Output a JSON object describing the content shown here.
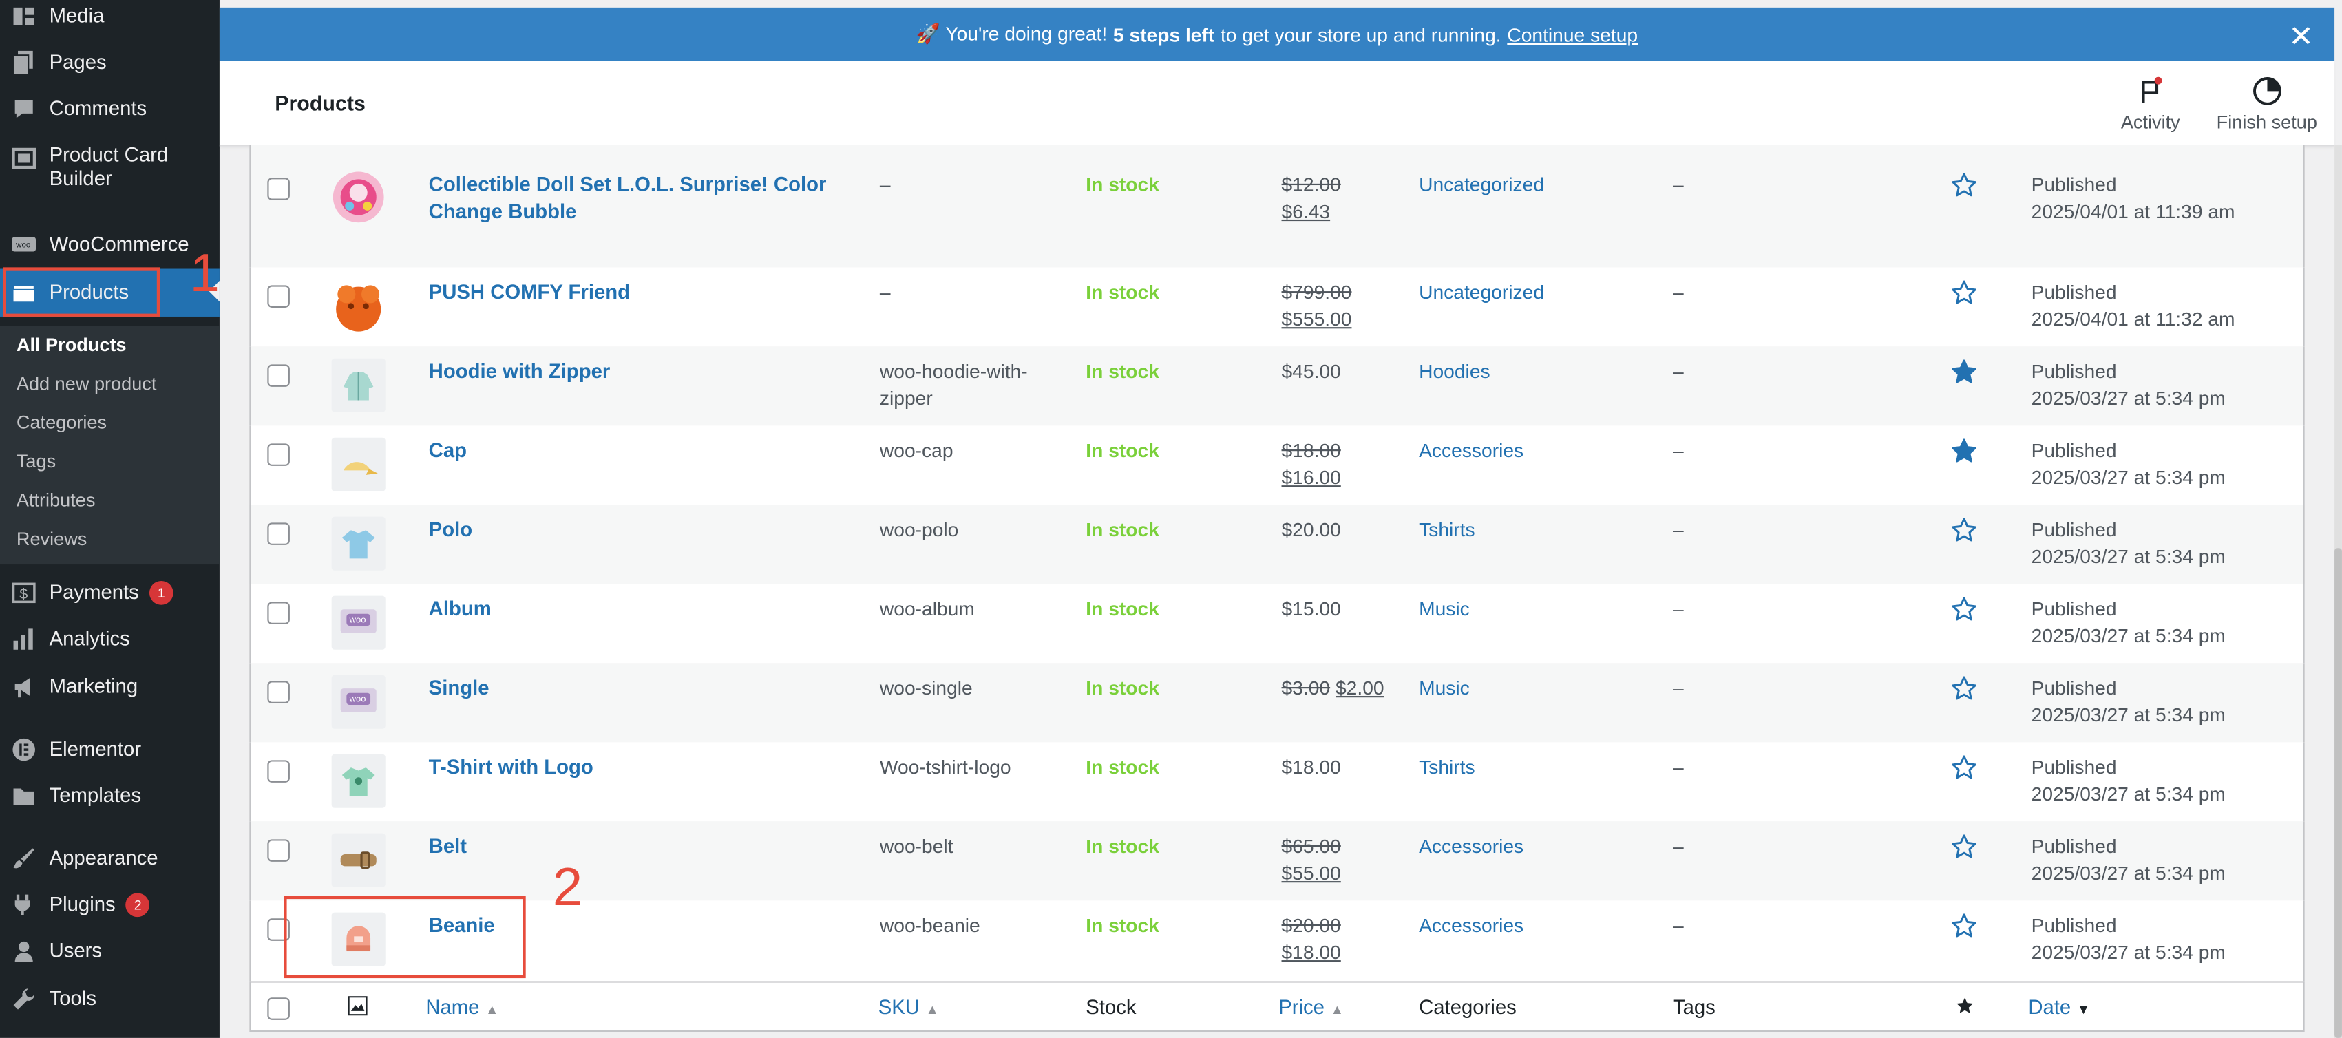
{
  "sidebar": {
    "top_items": [
      {
        "label": "Media",
        "icon": "media-icon"
      },
      {
        "label": "Pages",
        "icon": "pages-icon"
      },
      {
        "label": "Comments",
        "icon": "comments-icon"
      },
      {
        "label": "Product Card Builder",
        "icon": "card-builder-icon"
      },
      {
        "label": "WooCommerce",
        "icon": "woocommerce-icon"
      },
      {
        "label": "Products",
        "icon": "products-icon"
      }
    ],
    "submenu": [
      "All Products",
      "Add new product",
      "Categories",
      "Tags",
      "Attributes",
      "Reviews"
    ],
    "bottom_items": [
      {
        "label": "Payments",
        "badge": "1",
        "icon": "payments-icon"
      },
      {
        "label": "Analytics",
        "icon": "analytics-icon"
      },
      {
        "label": "Marketing",
        "icon": "marketing-icon"
      },
      {
        "label": "Elementor",
        "icon": "elementor-icon"
      },
      {
        "label": "Templates",
        "icon": "templates-icon"
      },
      {
        "label": "Appearance",
        "icon": "appearance-icon"
      },
      {
        "label": "Plugins",
        "badge": "2",
        "icon": "plugins-icon"
      },
      {
        "label": "Users",
        "icon": "users-icon"
      },
      {
        "label": "Tools",
        "icon": "tools-icon"
      }
    ]
  },
  "annotations": {
    "one": "1",
    "two": "2"
  },
  "notice": {
    "prefix": "🚀 You're doing great!",
    "bold": "5 steps left",
    "suffix": "to get your store up and running.",
    "link": "Continue setup"
  },
  "header": {
    "title": "Products",
    "activity": "Activity",
    "finish_setup": "Finish setup"
  },
  "products": [
    {
      "name": "Collectible Doll Set L.O.L. Surprise! Color Change Bubble",
      "sku": "–",
      "stock": "In stock",
      "price_old": "$12.00",
      "price_new": "$6.43",
      "price": "",
      "category": "Uncategorized",
      "tags": "–",
      "featured": false,
      "status": "Published",
      "date": "2025/04/01 at 11:39 am",
      "thumb": "doll"
    },
    {
      "name": "PUSH COMFY Friend",
      "sku": "–",
      "stock": "In stock",
      "price_old": "$799.00",
      "price_new": "$555.00",
      "price": "",
      "category": "Uncategorized",
      "tags": "–",
      "featured": false,
      "status": "Published",
      "date": "2025/04/01 at 11:32 am",
      "thumb": "plush"
    },
    {
      "name": "Hoodie with Zipper",
      "sku": "woo-hoodie-with-zipper",
      "stock": "In stock",
      "price_old": "",
      "price_new": "",
      "price": "$45.00",
      "category": "Hoodies",
      "tags": "–",
      "featured": true,
      "status": "Published",
      "date": "2025/03/27 at 5:34 pm",
      "thumb": "hoodie"
    },
    {
      "name": "Cap",
      "sku": "woo-cap",
      "stock": "In stock",
      "price_old": "$18.00",
      "price_new": "$16.00",
      "price": "",
      "category": "Accessories",
      "tags": "–",
      "featured": true,
      "status": "Published",
      "date": "2025/03/27 at 5:34 pm",
      "thumb": "cap"
    },
    {
      "name": "Polo",
      "sku": "woo-polo",
      "stock": "In stock",
      "price_old": "",
      "price_new": "",
      "price": "$20.00",
      "category": "Tshirts",
      "tags": "–",
      "featured": false,
      "status": "Published",
      "date": "2025/03/27 at 5:34 pm",
      "thumb": "polo"
    },
    {
      "name": "Album",
      "sku": "woo-album",
      "stock": "In stock",
      "price_old": "",
      "price_new": "",
      "price": "$15.00",
      "category": "Music",
      "tags": "–",
      "featured": false,
      "status": "Published",
      "date": "2025/03/27 at 5:34 pm",
      "thumb": "woo"
    },
    {
      "name": "Single",
      "sku": "woo-single",
      "stock": "In stock",
      "price_old": "$3.00",
      "price_new": "$2.00",
      "price": "",
      "category": "Music",
      "tags": "–",
      "featured": false,
      "status": "Published",
      "date": "2025/03/27 at 5:34 pm",
      "thumb": "woo",
      "inline_price": true
    },
    {
      "name": "T-Shirt with Logo",
      "sku": "Woo-tshirt-logo",
      "stock": "In stock",
      "price_old": "",
      "price_new": "",
      "price": "$18.00",
      "category": "Tshirts",
      "tags": "–",
      "featured": false,
      "status": "Published",
      "date": "2025/03/27 at 5:34 pm",
      "thumb": "tshirt"
    },
    {
      "name": "Belt",
      "sku": "woo-belt",
      "stock": "In stock",
      "price_old": "$65.00",
      "price_new": "$55.00",
      "price": "",
      "category": "Accessories",
      "tags": "–",
      "featured": false,
      "status": "Published",
      "date": "2025/03/27 at 5:34 pm",
      "thumb": "belt"
    },
    {
      "name": "Beanie",
      "sku": "woo-beanie",
      "stock": "In stock",
      "price_old": "$20.00",
      "price_new": "$18.00",
      "price": "",
      "category": "Accessories",
      "tags": "–",
      "featured": false,
      "status": "Published",
      "date": "2025/03/27 at 5:34 pm",
      "thumb": "beanie"
    }
  ],
  "columns": {
    "name": "Name",
    "sku": "SKU",
    "stock": "Stock",
    "price": "Price",
    "categories": "Categories",
    "tags": "Tags",
    "date": "Date"
  },
  "colors": {
    "accent": "#2271b1",
    "stock": "#7ad03a",
    "annotation": "#e74c3c",
    "notice": "#3582c4"
  }
}
